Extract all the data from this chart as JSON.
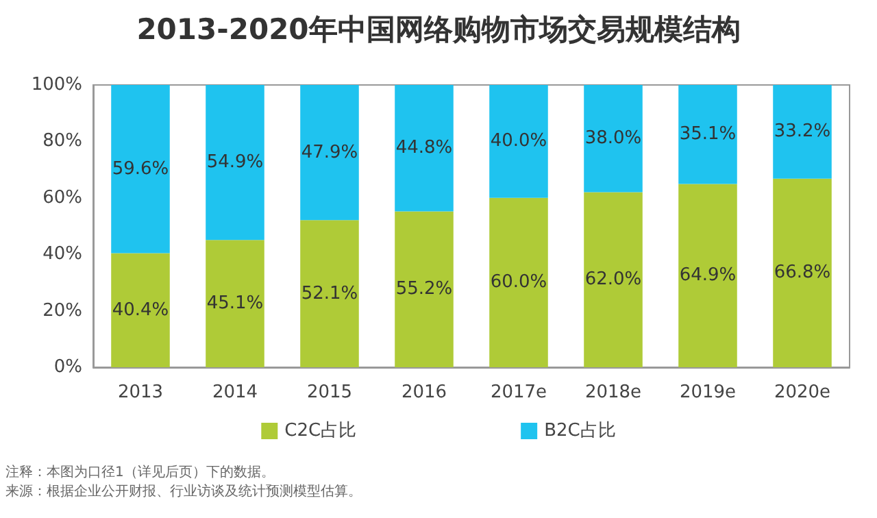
{
  "chart_data": {
    "type": "bar",
    "stacked": true,
    "title": "2013-2020年中国网络购物市场交易规模结构",
    "categories": [
      "2013",
      "2014",
      "2015",
      "2016",
      "2017e",
      "2018e",
      "2019e",
      "2020e"
    ],
    "series": [
      {
        "name": "C2C占比",
        "color": "#afcb37",
        "values": [
          40.4,
          45.1,
          52.1,
          55.2,
          60.0,
          62.0,
          64.9,
          66.8
        ],
        "value_labels": [
          "40.4%",
          "45.1%",
          "52.1%",
          "55.2%",
          "60.0%",
          "62.0%",
          "64.9%",
          "66.8%"
        ]
      },
      {
        "name": "B2C占比",
        "color": "#1fc3ef",
        "values": [
          59.6,
          54.9,
          47.9,
          44.8,
          40.0,
          38.0,
          35.1,
          33.2
        ],
        "value_labels": [
          "59.6%",
          "54.9%",
          "47.9%",
          "44.8%",
          "40.0%",
          "38.0%",
          "35.1%",
          "33.2%"
        ]
      }
    ],
    "ylim": [
      0,
      100
    ],
    "yticks": [
      {
        "value": 0,
        "label": "0%"
      },
      {
        "value": 20,
        "label": "20%"
      },
      {
        "value": 40,
        "label": "40%"
      },
      {
        "value": 60,
        "label": "60%"
      },
      {
        "value": 80,
        "label": "80%"
      },
      {
        "value": 100,
        "label": "100%"
      }
    ],
    "legend": "bottom",
    "grid": false,
    "annotations": [
      "注释：本图为口径1（详见后页）下的数据。",
      "来源：根据企业公开财报、行业访谈及统计预测模型估算。"
    ]
  }
}
